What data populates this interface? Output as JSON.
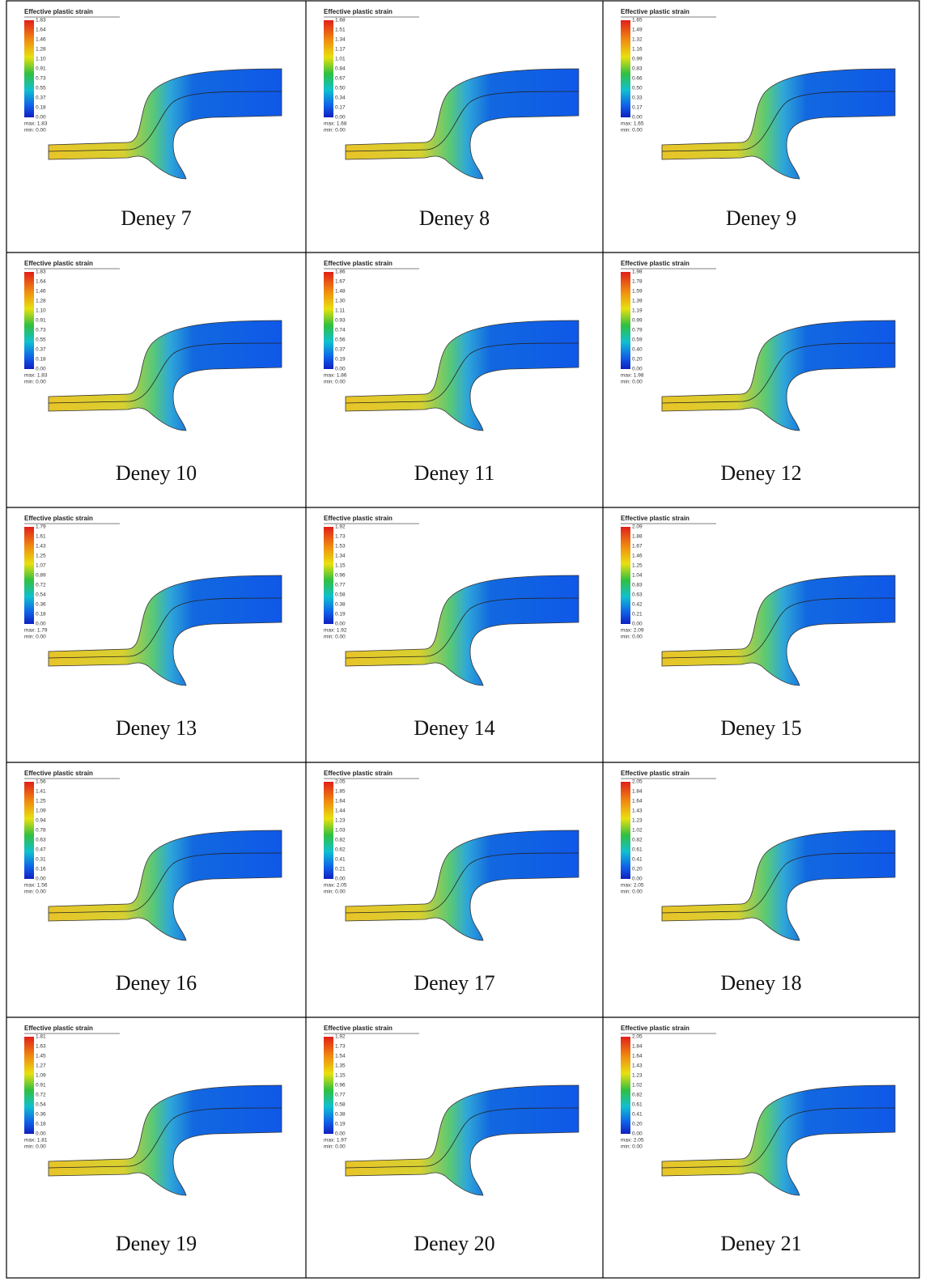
{
  "cells": [
    {
      "title": "Effective plastic strain",
      "ticks": [
        "1.83",
        "1.64",
        "1.46",
        "1.28",
        "1.10",
        "0.91",
        "0.73",
        "0.55",
        "0.37",
        "0.18",
        "0.00"
      ],
      "max": "max: 1.83",
      "min": "min: 0.00",
      "caption": "Deney 7"
    },
    {
      "title": "Effective plastic strain",
      "ticks": [
        "1.68",
        "1.51",
        "1.34",
        "1.17",
        "1.01",
        "0.84",
        "0.67",
        "0.50",
        "0.34",
        "0.17",
        "0.00"
      ],
      "max": "max: 1.68",
      "min": "min: 0.00",
      "caption": "Deney 8"
    },
    {
      "title": "Effective plastic strain",
      "ticks": [
        "1.65",
        "1.49",
        "1.32",
        "1.16",
        "0.99",
        "0.83",
        "0.66",
        "0.50",
        "0.33",
        "0.17",
        "0.00"
      ],
      "max": "max: 1.65",
      "min": "min: 0.00",
      "caption": "Deney 9"
    },
    {
      "title": "Effective plastic strain",
      "ticks": [
        "1.83",
        "1.64",
        "1.46",
        "1.28",
        "1.10",
        "0.91",
        "0.73",
        "0.55",
        "0.37",
        "0.18",
        "0.00"
      ],
      "max": "max: 1.83",
      "min": "min: 0.00",
      "caption": "Deney 10"
    },
    {
      "title": "Effective plastic strain",
      "ticks": [
        "1.86",
        "1.67",
        "1.48",
        "1.30",
        "1.11",
        "0.93",
        "0.74",
        "0.56",
        "0.37",
        "0.19",
        "0.00"
      ],
      "max": "max: 1.86",
      "min": "min: 0.00",
      "caption": "Deney 11"
    },
    {
      "title": "Effective plastic strain",
      "ticks": [
        "1.98",
        "1.78",
        "1.59",
        "1.39",
        "1.19",
        "0.99",
        "0.79",
        "0.59",
        "0.40",
        "0.20",
        "0.00"
      ],
      "max": "max: 1.98",
      "min": "min: 0.00",
      "caption": "Deney 12"
    },
    {
      "title": "Effective plastic strain",
      "ticks": [
        "1.79",
        "1.61",
        "1.43",
        "1.25",
        "1.07",
        "0.89",
        "0.72",
        "0.54",
        "0.36",
        "0.18",
        "0.00"
      ],
      "max": "max: 1.79",
      "min": "min: 0.00",
      "caption": "Deney 13"
    },
    {
      "title": "Effective plastic strain",
      "ticks": [
        "1.92",
        "1.73",
        "1.53",
        "1.34",
        "1.15",
        "0.96",
        "0.77",
        "0.58",
        "0.38",
        "0.19",
        "0.00"
      ],
      "max": "max: 1.92",
      "min": "min: 0.00",
      "caption": "Deney 14"
    },
    {
      "title": "Effective plastic strain",
      "ticks": [
        "2.09",
        "1.88",
        "1.67",
        "1.46",
        "1.25",
        "1.04",
        "0.83",
        "0.63",
        "0.42",
        "0.21",
        "0.00"
      ],
      "max": "max: 2.09",
      "min": "min: 0.00",
      "caption": "Deney 15"
    },
    {
      "title": "Effective plastic strain",
      "ticks": [
        "1.56",
        "1.41",
        "1.25",
        "1.09",
        "0.94",
        "0.78",
        "0.63",
        "0.47",
        "0.31",
        "0.16",
        "0.00"
      ],
      "max": "max: 1.56",
      "min": "min: 0.00",
      "caption": "Deney 16"
    },
    {
      "title": "Effective plastic strain",
      "ticks": [
        "2.05",
        "1.85",
        "1.64",
        "1.44",
        "1.23",
        "1.03",
        "0.82",
        "0.62",
        "0.41",
        "0.21",
        "0.00"
      ],
      "max": "max: 2.05",
      "min": "min: 0.00",
      "caption": "Deney 17"
    },
    {
      "title": "Effective plastic strain",
      "ticks": [
        "2.05",
        "1.84",
        "1.64",
        "1.43",
        "1.23",
        "1.02",
        "0.82",
        "0.61",
        "0.41",
        "0.20",
        "0.00"
      ],
      "max": "max: 2.05",
      "min": "min: 0.00",
      "caption": "Deney 18"
    },
    {
      "title": "Effective plastic strain",
      "ticks": [
        "1.81",
        "1.63",
        "1.45",
        "1.27",
        "1.09",
        "0.91",
        "0.72",
        "0.54",
        "0.36",
        "0.18",
        "0.00"
      ],
      "max": "max: 1.81",
      "min": "min: 0.00",
      "caption": "Deney 19"
    },
    {
      "title": "Effective plastic strain",
      "ticks": [
        "1.92",
        "1.73",
        "1.54",
        "1.35",
        "1.15",
        "0.96",
        "0.77",
        "0.58",
        "0.38",
        "0.19",
        "0.00"
      ],
      "max": "max: 1.97",
      "min": "min: 0.00",
      "caption": "Deney 20"
    },
    {
      "title": "Effective plastic strain",
      "ticks": [
        "2.05",
        "1.84",
        "1.64",
        "1.43",
        "1.23",
        "1.02",
        "0.82",
        "0.61",
        "0.41",
        "0.20",
        "0.00"
      ],
      "max": "max: 2.05",
      "min": "min: 0.00",
      "caption": "Deney 21"
    }
  ]
}
